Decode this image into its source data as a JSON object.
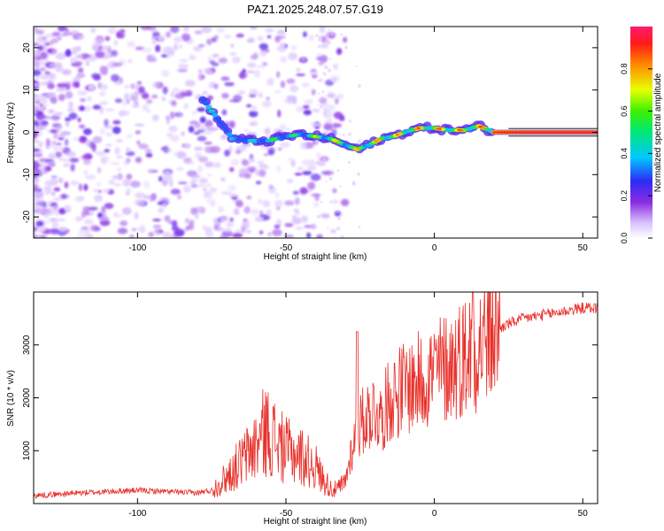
{
  "title": "PAZ1.2025.248.07.57.G19",
  "chart_data": [
    {
      "type": "heatmap",
      "xlabel": "Height of straight line (km)",
      "ylabel": "Frequency (Hz)",
      "xlim": [
        -135,
        55
      ],
      "ylim": [
        -25,
        25
      ],
      "xticks": [
        -100,
        -50,
        0,
        50
      ],
      "xtick_labels": [
        "-100",
        "-50",
        "0",
        "50"
      ],
      "yticks": [
        -20,
        -10,
        0,
        10,
        20
      ],
      "ytick_labels": [
        "-20",
        "-10",
        "0",
        "10",
        "20"
      ],
      "colorbar": {
        "label": "Normalized spectral amplitude",
        "range": [
          0.0,
          1.0
        ],
        "ticks": [
          0.0,
          0.2,
          0.4,
          0.6,
          0.8
        ],
        "tick_labels": [
          "0.0",
          "0.2",
          "0.4",
          "0.6",
          "0.8"
        ]
      },
      "ridge": {
        "x": [
          -75,
          -68,
          -62,
          -56,
          -50,
          -45,
          -40,
          -35,
          -30,
          -26,
          -22,
          -18,
          -14,
          -10,
          -5,
          0,
          5,
          10,
          15,
          20,
          30,
          40,
          55
        ],
        "y": [
          5,
          -1.5,
          -2,
          -2,
          -1,
          -0.5,
          -1,
          -1.5,
          -3,
          -4,
          -3,
          -1.5,
          -1,
          0,
          1,
          1,
          0.5,
          0.5,
          1.5,
          0,
          0,
          0,
          0
        ],
        "amplitude": [
          0.5,
          0.45,
          0.5,
          0.6,
          0.55,
          0.6,
          0.7,
          0.75,
          0.75,
          0.8,
          0.8,
          0.85,
          0.85,
          0.85,
          0.9,
          0.9,
          0.9,
          0.9,
          0.9,
          0.9,
          0.95,
          0.95,
          0.95
        ]
      }
    },
    {
      "type": "line",
      "xlabel": "Height of straight line (km)",
      "ylabel": "SNR (10 * v/v)",
      "xlim": [
        -135,
        55
      ],
      "ylim": [
        0,
        4000
      ],
      "xticks": [
        -100,
        -50,
        0,
        50
      ],
      "xtick_labels": [
        "-100",
        "-50",
        "0",
        "50"
      ],
      "yticks": [
        1000,
        2000,
        3000
      ],
      "ytick_labels": [
        "1000",
        "2000",
        "3000"
      ],
      "series": [
        {
          "name": "SNR",
          "color": "#e8302a",
          "x": [
            -135,
            -120,
            -100,
            -80,
            -75,
            -70,
            -65,
            -60,
            -57,
            -55,
            -52,
            -50,
            -45,
            -40,
            -38,
            -35,
            -33,
            -30,
            -28,
            -25,
            -22,
            -20,
            -18,
            -15,
            -10,
            -5,
            0,
            5,
            10,
            13,
            15,
            20,
            25,
            30,
            40,
            50,
            55
          ],
          "y": [
            150,
            200,
            250,
            200,
            250,
            500,
            800,
            1100,
            1400,
            1300,
            1100,
            1000,
            900,
            700,
            500,
            300,
            250,
            400,
            1000,
            1500,
            1700,
            1800,
            1600,
            2000,
            2200,
            2300,
            2500,
            2600,
            2800,
            2900,
            3000,
            3250,
            3400,
            3500,
            3600,
            3700,
            3700
          ]
        }
      ]
    }
  ]
}
